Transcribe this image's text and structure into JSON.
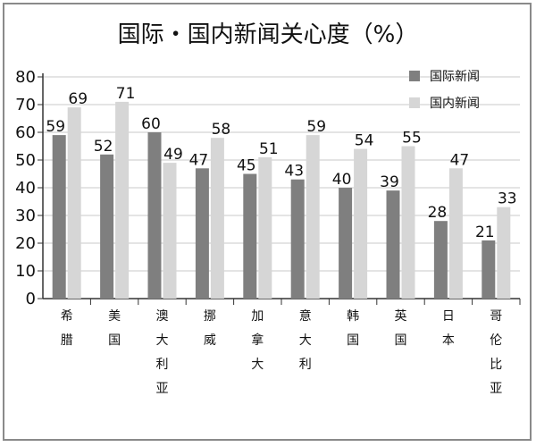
{
  "chart_data": {
    "type": "bar",
    "title": "国际・国内新闻关心度（%）",
    "categories": [
      "希腊",
      "美国",
      "澳大利亚",
      "挪威",
      "加拿大",
      "意大利",
      "韩国",
      "英国",
      "日本",
      "哥伦比亚"
    ],
    "series": [
      {
        "name": "国际新闻",
        "values": [
          59,
          52,
          60,
          47,
          45,
          43,
          40,
          39,
          28,
          21
        ],
        "color": "#7f7f7f"
      },
      {
        "name": "国内新闻",
        "values": [
          69,
          71,
          49,
          58,
          51,
          59,
          54,
          55,
          47,
          33
        ],
        "color": "#d6d6d6"
      }
    ],
    "y_ticks": [
      "0",
      "10",
      "20",
      "30",
      "40",
      "50",
      "60",
      "70",
      "80"
    ],
    "ylim": [
      0,
      80
    ],
    "xlabel": "",
    "ylabel": "",
    "grid": true,
    "legend_position": "top-right",
    "data_labels": true
  }
}
